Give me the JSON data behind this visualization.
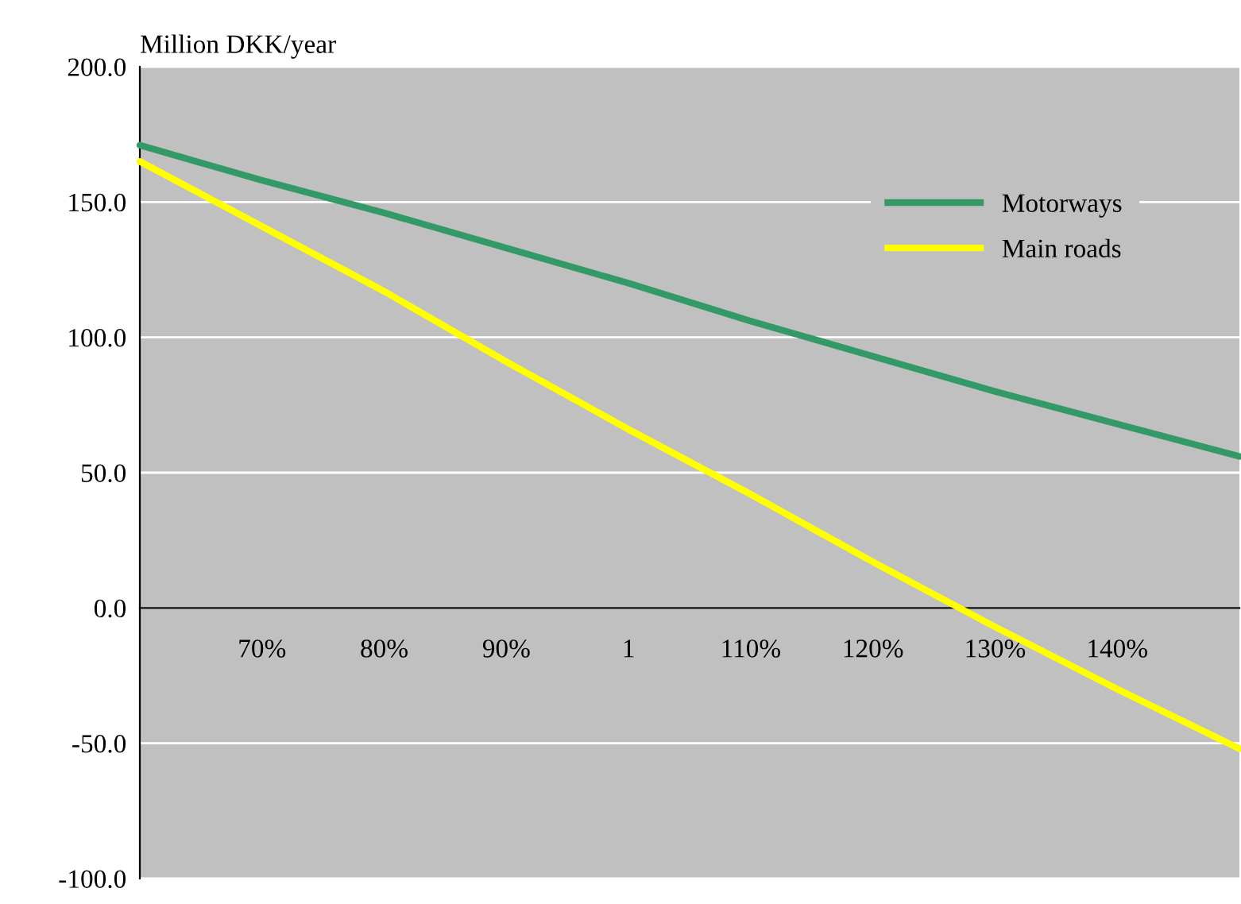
{
  "chart_data": {
    "type": "line",
    "ylabel": "Million DKK/year",
    "categories": [
      null,
      "70%",
      "80%",
      "90%",
      "1",
      "110%",
      "120%",
      "130%",
      "140%",
      null
    ],
    "series": [
      {
        "name": "Motorways",
        "color": "#339966",
        "values": [
          171,
          158,
          146,
          133,
          120,
          106,
          93,
          80,
          68,
          56
        ]
      },
      {
        "name": "Main roads",
        "color": "#ffff00",
        "values": [
          165,
          141,
          117,
          91,
          66,
          42,
          17,
          -7,
          -30,
          -52
        ]
      }
    ],
    "ylim": [
      -100,
      200
    ],
    "yticks": [
      {
        "value": -100,
        "label": "-100.0"
      },
      {
        "value": -50,
        "label": "-50.0"
      },
      {
        "value": 0,
        "label": "0.0"
      },
      {
        "value": 50,
        "label": "50.0"
      },
      {
        "value": 100,
        "label": "100.0"
      },
      {
        "value": 150,
        "label": "150.0"
      },
      {
        "value": 200,
        "label": "200.0"
      }
    ],
    "grid": "y",
    "legend": "top right",
    "marker": "none",
    "line_style": "solid"
  }
}
